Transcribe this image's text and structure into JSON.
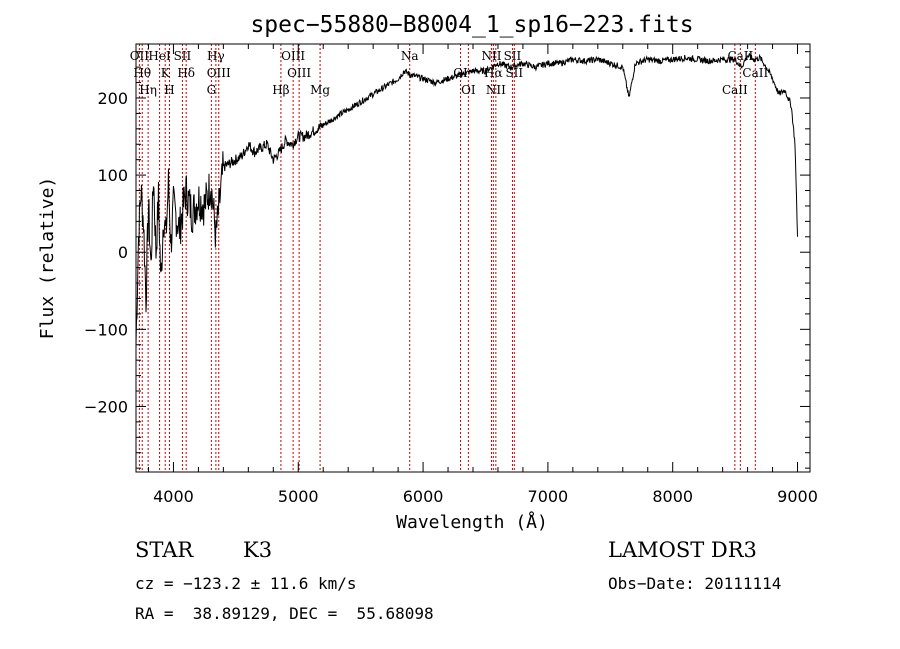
{
  "chart_data": {
    "type": "line",
    "title": "spec−55880−B8004_1_sp16−223.fits",
    "xlabel": "Wavelength (Å)",
    "ylabel": "Flux (relative)",
    "xlim": [
      3700,
      9100
    ],
    "ylim": [
      -285,
      270
    ],
    "xticks": [
      4000,
      5000,
      6000,
      7000,
      8000,
      9000
    ],
    "yticks": [
      -200,
      -100,
      0,
      100,
      200
    ],
    "series": [
      {
        "name": "flux",
        "x": [
          3700,
          3720,
          3740,
          3760,
          3780,
          3800,
          3820,
          3840,
          3860,
          3880,
          3900,
          3920,
          3940,
          3960,
          3980,
          4000,
          4050,
          4100,
          4150,
          4200,
          4250,
          4300,
          4340,
          4400,
          4450,
          4500,
          4550,
          4600,
          4650,
          4700,
          4750,
          4800,
          4850,
          4900,
          4950,
          5000,
          5050,
          5100,
          5150,
          5200,
          5300,
          5400,
          5500,
          5600,
          5700,
          5800,
          5850,
          5900,
          6000,
          6100,
          6200,
          6300,
          6400,
          6500,
          6600,
          6700,
          6800,
          6900,
          7000,
          7100,
          7200,
          7300,
          7400,
          7500,
          7600,
          7650,
          7700,
          7800,
          7900,
          8000,
          8100,
          8200,
          8300,
          8400,
          8500,
          8550,
          8600,
          8650,
          8700,
          8750,
          8800,
          8850,
          8900,
          8950,
          8980,
          9000
        ],
        "y": [
          -120,
          20,
          80,
          40,
          -60,
          60,
          -20,
          100,
          0,
          70,
          -40,
          50,
          20,
          90,
          10,
          60,
          30,
          80,
          50,
          70,
          60,
          90,
          20,
          110,
          115,
          120,
          125,
          140,
          130,
          135,
          140,
          120,
          130,
          145,
          140,
          150,
          150,
          155,
          160,
          165,
          175,
          185,
          195,
          205,
          215,
          225,
          235,
          230,
          225,
          220,
          225,
          230,
          235,
          235,
          245,
          240,
          245,
          240,
          245,
          245,
          250,
          248,
          250,
          245,
          240,
          200,
          245,
          250,
          248,
          250,
          252,
          250,
          248,
          250,
          250,
          240,
          255,
          250,
          252,
          240,
          225,
          205,
          210,
          190,
          140,
          20
        ]
      }
    ],
    "line_features": [
      {
        "wavelength": 3727,
        "label": "OII"
      },
      {
        "wavelength": 3750,
        "label": "Hθ"
      },
      {
        "wavelength": 3797,
        "label": "Hη"
      },
      {
        "wavelength": 3889,
        "label": "HeI"
      },
      {
        "wavelength": 3934,
        "label": "K"
      },
      {
        "wavelength": 3968,
        "label": "H"
      },
      {
        "wavelength": 4072,
        "label": "SII"
      },
      {
        "wavelength": 4102,
        "label": "Hδ"
      },
      {
        "wavelength": 4304,
        "label": "G"
      },
      {
        "wavelength": 4340,
        "label": "Hγ"
      },
      {
        "wavelength": 4363,
        "label": "OIII"
      },
      {
        "wavelength": 4861,
        "label": "Hβ"
      },
      {
        "wavelength": 4959,
        "label": "OIII"
      },
      {
        "wavelength": 5007,
        "label": "OIII"
      },
      {
        "wavelength": 5175,
        "label": "Mg"
      },
      {
        "wavelength": 5893,
        "label": "Na"
      },
      {
        "wavelength": 6300,
        "label": "OI"
      },
      {
        "wavelength": 6363,
        "label": "OI"
      },
      {
        "wavelength": 6548,
        "label": "NII"
      },
      {
        "wavelength": 6563,
        "label": "Hα"
      },
      {
        "wavelength": 6583,
        "label": "NII"
      },
      {
        "wavelength": 6716,
        "label": "SII"
      },
      {
        "wavelength": 6731,
        "label": "SII"
      },
      {
        "wavelength": 8498,
        "label": "CaII"
      },
      {
        "wavelength": 8542,
        "label": "CaII"
      },
      {
        "wavelength": 8662,
        "label": "CaII"
      }
    ]
  },
  "info": {
    "object_class": "STAR",
    "subclass": "K3",
    "survey": "LAMOST DR3",
    "cz_line": "cz = −123.2 ± 11.6 km/s",
    "obs_date_line": "Obs−Date: 20111114",
    "radec_line": "RA =  38.89129, DEC =  55.68098"
  },
  "colors": {
    "spectrum": "#000000",
    "feature_line": "#cc0000",
    "axes": "#000000"
  }
}
